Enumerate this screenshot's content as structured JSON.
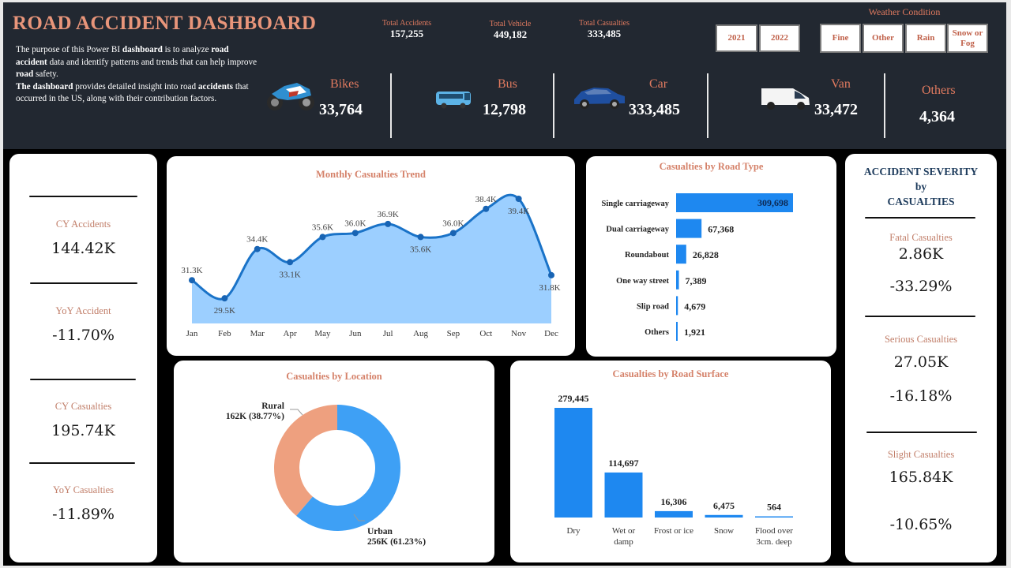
{
  "header": {
    "title": "ROAD ACCIDENT DASHBOARD",
    "description": [
      {
        "text": "The purpose of this Power BI ",
        "bold": false
      },
      {
        "text": "dashboard",
        "bold": true
      },
      {
        "text": " is to analyze ",
        "bold": false
      },
      {
        "text": "road accident",
        "bold": true
      },
      {
        "text": " data and identify patterns and trends that can help improve ",
        "bold": false
      },
      {
        "text": "road",
        "bold": true
      },
      {
        "text": " safety.",
        "bold": false
      },
      {
        "text": "\n",
        "bold": false
      },
      {
        "text": "The dashboard",
        "bold": true
      },
      {
        "text": " provides detailed insight into road ",
        "bold": false
      },
      {
        "text": "accidents",
        "bold": true
      },
      {
        "text": " that occurred in the US, along with their contribution factors.",
        "bold": false
      }
    ],
    "totals": [
      {
        "label": "Total Accidents",
        "value": "157,255"
      },
      {
        "label": "Total Vehicle",
        "value": "449,182"
      },
      {
        "label": "Total Casualties",
        "value": "333,485"
      }
    ],
    "year_slicer": [
      "2021",
      "2022"
    ],
    "weather_title": "Weather Condition",
    "weather_slicer": [
      "Fine",
      "Other",
      "Rain",
      "Snow or Fog"
    ],
    "vehicles": [
      {
        "name": "Bikes",
        "value": "33,764",
        "icon": "motorbike-icon"
      },
      {
        "name": "Bus",
        "value": "12,798",
        "icon": "bus-icon"
      },
      {
        "name": "Car",
        "value": "333,485",
        "icon": "car-icon"
      },
      {
        "name": "Van",
        "value": "33,472",
        "icon": "van-icon"
      },
      {
        "name": "Others",
        "value": "4,364",
        "icon": ""
      }
    ]
  },
  "left_kpis": [
    {
      "label": "CY Accidents",
      "value": "144.42K"
    },
    {
      "label": "YoY Accident",
      "value": "-11.70%"
    },
    {
      "label": "CY Casualties",
      "value": "195.74K"
    },
    {
      "label": "YoY Casualties",
      "value": "-11.89%"
    }
  ],
  "severity": {
    "title_line1": "ACCIDENT SEVERITY",
    "title_line2": "by",
    "title_line3": "CASUALTIES",
    "items": [
      {
        "label": "Fatal Casualties",
        "value": "2.86K",
        "yoy": "-33.29%"
      },
      {
        "label": "Serious Casualties",
        "value": "27.05K",
        "yoy": "-16.18%"
      },
      {
        "label": "Slight Casualties",
        "value": "165.84K",
        "yoy": "-10.65%"
      }
    ]
  },
  "colors": {
    "header_bg": "#222831",
    "accent": "#e07a5f",
    "bar_blue": "#1e88f0",
    "area_fill": "#9ccfff",
    "line_blue": "#1a73c8",
    "rural": "#eea07f",
    "urban": "#3ea0f5"
  },
  "chart_data": [
    {
      "type": "area",
      "title": "Monthly Casualties Trend",
      "categories": [
        "Jan",
        "Feb",
        "Mar",
        "Apr",
        "May",
        "Jun",
        "Jul",
        "Aug",
        "Sep",
        "Oct",
        "Nov",
        "Dec"
      ],
      "values": [
        31.3,
        29.5,
        34.4,
        33.1,
        35.6,
        36.0,
        36.9,
        35.6,
        36.0,
        38.4,
        39.4,
        31.8
      ],
      "labels": [
        "31.3K",
        "29.5K",
        "34.4K",
        "33.1K",
        "35.6K",
        "36.0K",
        "36.9K",
        "35.6K",
        "36.0K",
        "38.4K",
        "39.4K",
        "31.8K"
      ],
      "unit": "K",
      "ylim": [
        27,
        40.5
      ],
      "grid": false
    },
    {
      "type": "bar",
      "orientation": "horizontal",
      "title": "Casualties by Road Type",
      "categories": [
        "Single carriageway",
        "Dual carriageway",
        "Roundabout",
        "One way street",
        "Slip road",
        "Others"
      ],
      "values": [
        309698,
        67368,
        26828,
        7389,
        4679,
        1921
      ],
      "labels": [
        "309,698",
        "67,368",
        "26,828",
        "7,389",
        "4,679",
        "1,921"
      ]
    },
    {
      "type": "pie",
      "variant": "donut",
      "title": "Casualties by Location",
      "categories": [
        "Urban",
        "Rural"
      ],
      "values": [
        256,
        162
      ],
      "percent": [
        61.23,
        38.77
      ],
      "labels": [
        "256K (61.23%)",
        "162K (38.77%)"
      ]
    },
    {
      "type": "bar",
      "orientation": "vertical",
      "title": "Casualties by Road Surface",
      "categories": [
        "Dry",
        "Wet or damp",
        "Frost or ice",
        "Snow",
        "Flood over 3cm. deep"
      ],
      "category_lines": [
        [
          "Dry"
        ],
        [
          "Wet or",
          "damp"
        ],
        [
          "Frost or ice"
        ],
        [
          "Snow"
        ],
        [
          "Flood over",
          "3cm. deep"
        ]
      ],
      "values": [
        279445,
        114697,
        16306,
        6475,
        564
      ],
      "labels": [
        "279,445",
        "114,697",
        "16,306",
        "6,475",
        "564"
      ]
    }
  ]
}
